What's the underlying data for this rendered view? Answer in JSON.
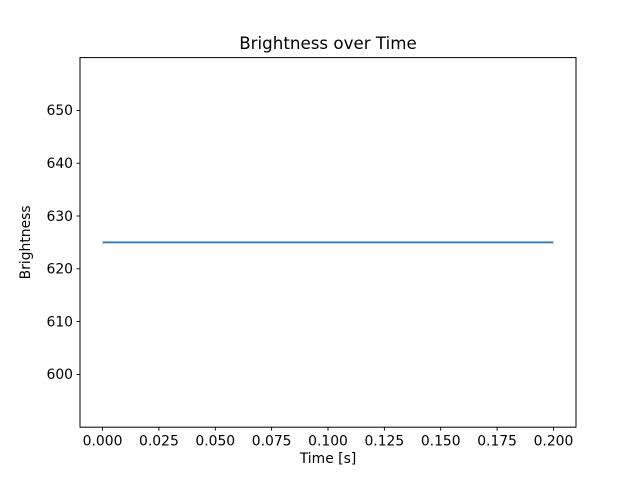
{
  "figure": {
    "background_color": "#ffffff",
    "frame_color": "#000000",
    "text_color": "#000000"
  },
  "chart_data": {
    "type": "line",
    "title": "Brightness over Time",
    "xlabel": "Time [s]",
    "ylabel": "Brightness",
    "xlim": [
      -0.01,
      0.21
    ],
    "ylim": [
      590,
      660
    ],
    "grid": false,
    "legend": "none",
    "xticks": {
      "values": [
        0.0,
        0.025,
        0.05,
        0.075,
        0.1,
        0.125,
        0.15,
        0.175,
        0.2
      ],
      "labels": [
        "0.000",
        "0.025",
        "0.050",
        "0.075",
        "0.100",
        "0.125",
        "0.150",
        "0.175",
        "0.200"
      ]
    },
    "yticks": {
      "values": [
        600,
        610,
        620,
        630,
        640,
        650
      ],
      "labels": [
        "600",
        "610",
        "620",
        "630",
        "640",
        "650"
      ]
    },
    "series": [
      {
        "name": "brightness",
        "color": "#1f77b4",
        "x": [
          0.0,
          0.2
        ],
        "y": [
          625,
          625
        ],
        "constant_value": 625
      }
    ]
  }
}
